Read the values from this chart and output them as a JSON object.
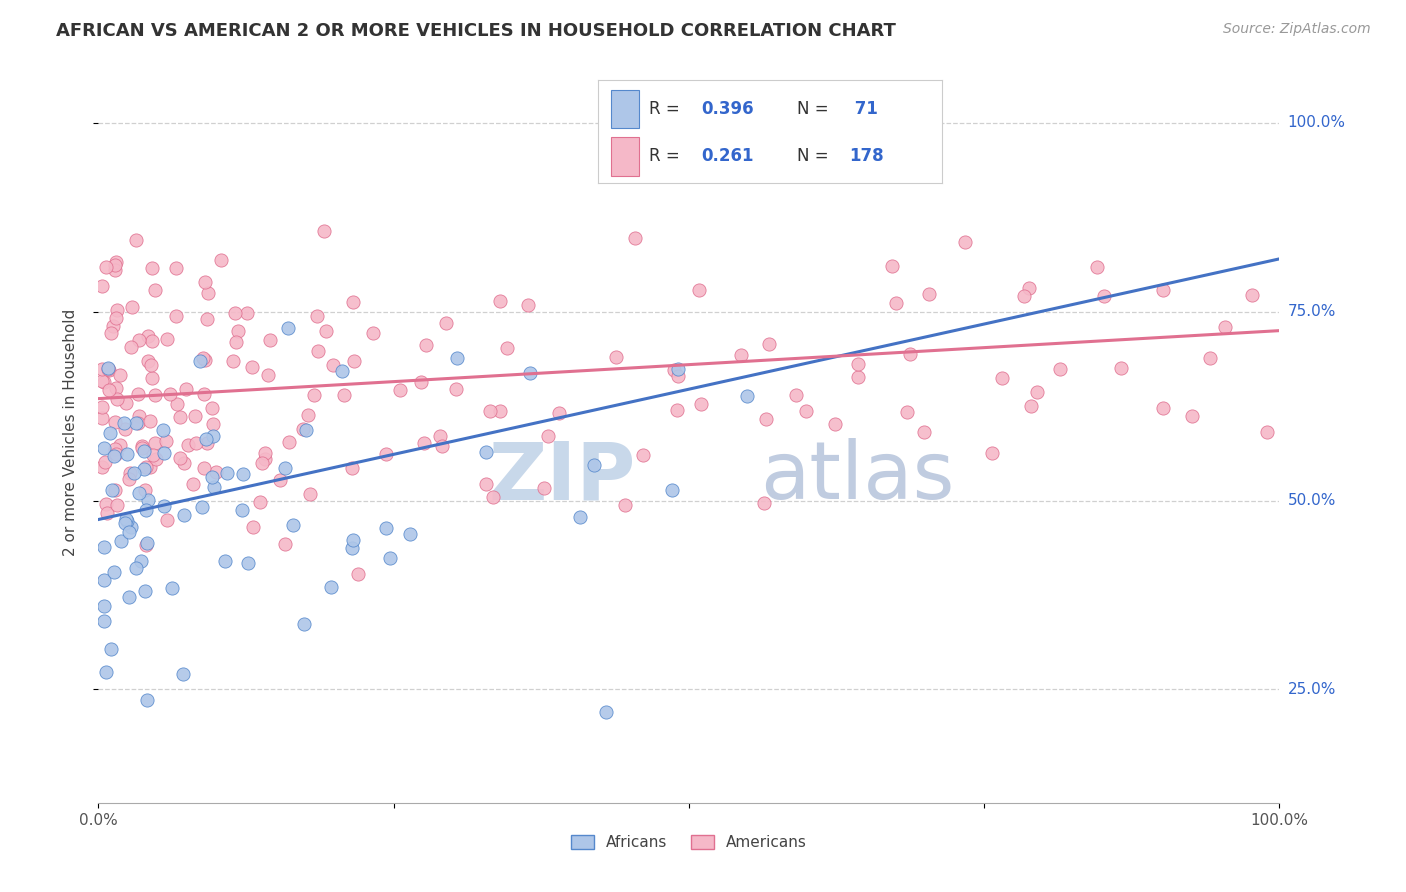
{
  "title": "AFRICAN VS AMERICAN 2 OR MORE VEHICLES IN HOUSEHOLD CORRELATION CHART",
  "source": "Source: ZipAtlas.com",
  "ylabel": "2 or more Vehicles in Household",
  "legend_label1": "Africans",
  "legend_label2": "Americans",
  "R1": 0.396,
  "N1": 71,
  "R2": 0.261,
  "N2": 178,
  "color_african_fill": "#aec6e8",
  "color_african_edge": "#5588cc",
  "color_american_fill": "#f5b8c8",
  "color_american_edge": "#e07090",
  "color_line_african": "#4472c4",
  "color_line_american": "#e07090",
  "color_title": "#333333",
  "color_source": "#999999",
  "color_blue_label": "#3366cc",
  "watermark_zip_color": "#c8d8ea",
  "watermark_atlas_color": "#c0cce0",
  "af_line_x0": 0.0,
  "af_line_y0": 0.475,
  "af_line_x1": 1.0,
  "af_line_y1": 0.82,
  "am_line_x0": 0.0,
  "am_line_y0": 0.635,
  "am_line_x1": 1.0,
  "am_line_y1": 0.725,
  "ylim_min": 0.1,
  "ylim_max": 1.08,
  "ytick_vals": [
    0.25,
    0.5,
    0.75,
    1.0
  ],
  "ytick_labels": [
    "25.0%",
    "50.0%",
    "75.0%",
    "100.0%"
  ],
  "xtick_labels": [
    "0.0%",
    "100.0%"
  ],
  "xtick_vals": [
    0.0,
    1.0
  ]
}
